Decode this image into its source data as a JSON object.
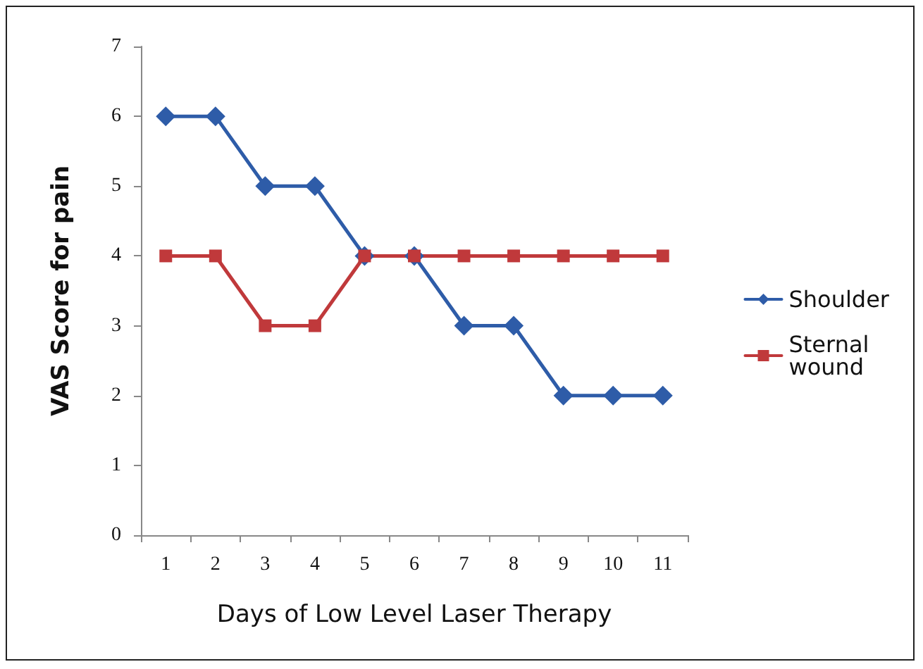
{
  "chart_data": {
    "type": "line",
    "xlabel": "Days of Low Level Laser Therapy",
    "ylabel": "VAS Score for pain",
    "categories": [
      "1",
      "2",
      "3",
      "4",
      "5",
      "6",
      "7",
      "8",
      "9",
      "10",
      "11"
    ],
    "series": [
      {
        "name": "Shoulder",
        "color": "#2e5ca8",
        "marker": "diamond",
        "values": [
          6,
          6,
          5,
          5,
          4,
          4,
          3,
          3,
          2,
          2,
          2
        ]
      },
      {
        "name": "Sternal wound",
        "color": "#c0393b",
        "marker": "square",
        "values": [
          4,
          4,
          3,
          3,
          4,
          4,
          4,
          4,
          4,
          4,
          4
        ]
      }
    ],
    "ylim": [
      0,
      7
    ],
    "yticks": [
      0,
      1,
      2,
      3,
      4,
      5,
      6,
      7
    ],
    "grid": false,
    "legend": "right",
    "line_style": "solid"
  }
}
